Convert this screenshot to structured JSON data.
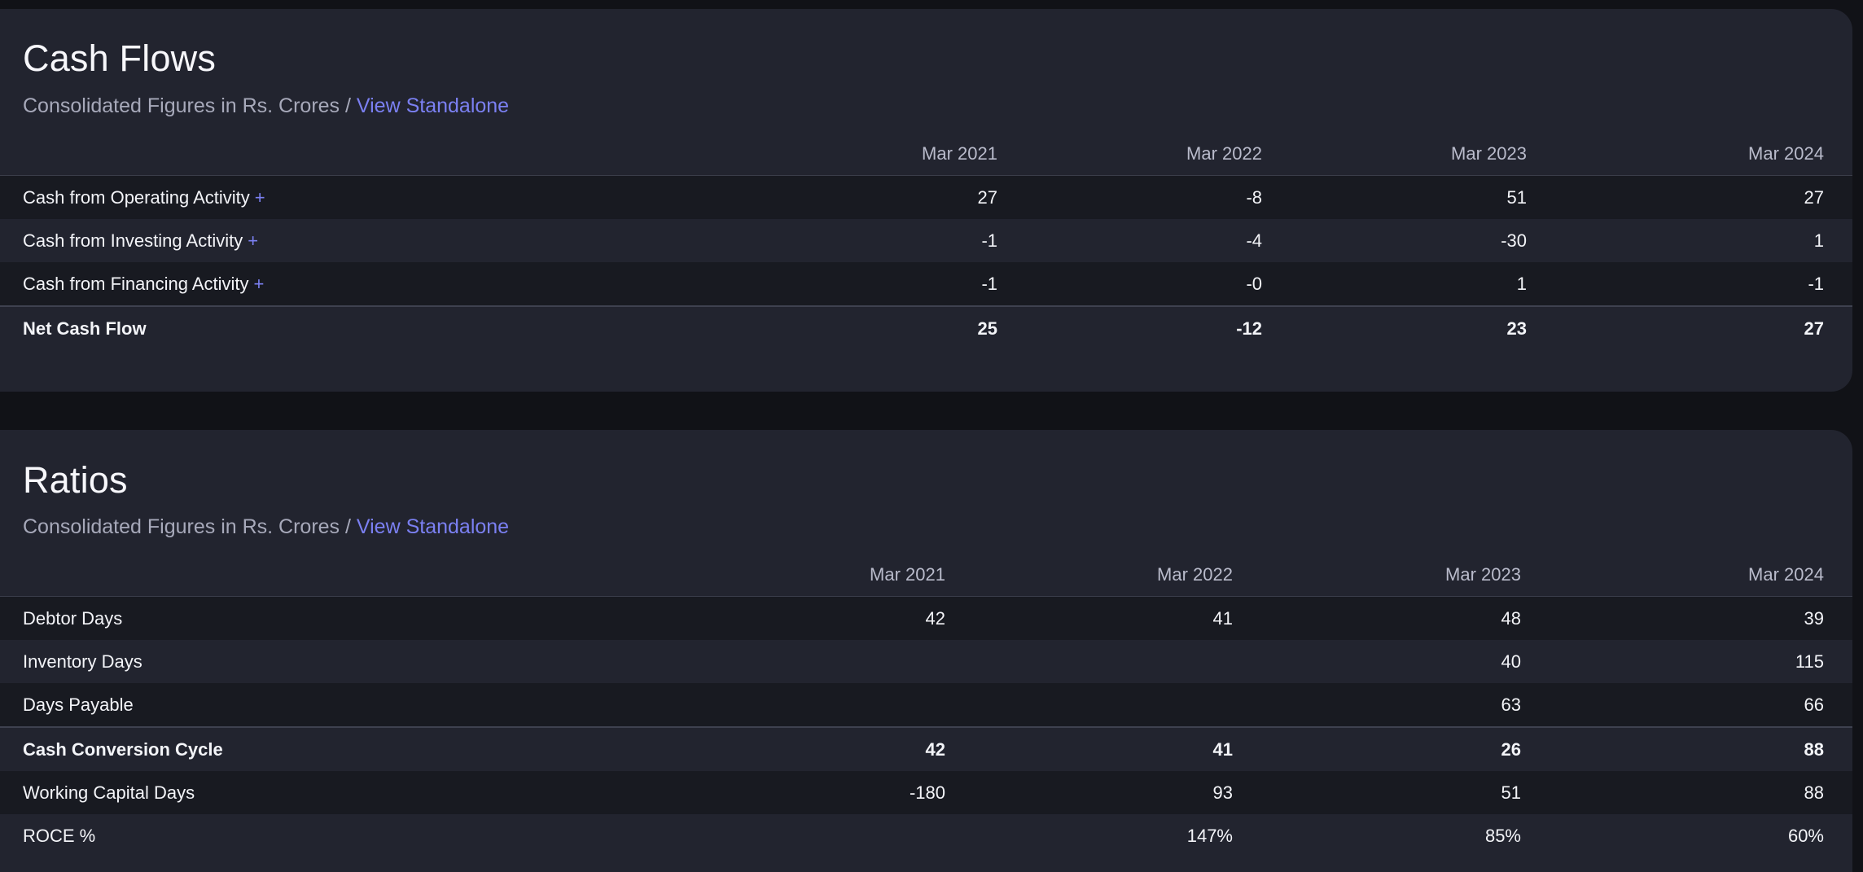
{
  "cash_flows": {
    "title": "Cash Flows",
    "subtitle": "Consolidated Figures in Rs. Crores /",
    "link": "View Standalone",
    "columns": [
      "Mar 2021",
      "Mar 2022",
      "Mar 2023",
      "Mar 2024"
    ],
    "rows": [
      {
        "label": "Cash from Operating Activity",
        "plus": "+",
        "values": [
          "27",
          "-8",
          "51",
          "27"
        ]
      },
      {
        "label": "Cash from Investing Activity",
        "plus": "+",
        "values": [
          "-1",
          "-4",
          "-30",
          "1"
        ]
      },
      {
        "label": "Cash from Financing Activity",
        "plus": "+",
        "values": [
          "-1",
          "-0",
          "1",
          "-1"
        ]
      },
      {
        "label": "Net Cash Flow",
        "values": [
          "25",
          "-12",
          "23",
          "27"
        ]
      }
    ]
  },
  "ratios": {
    "title": "Ratios",
    "subtitle": "Consolidated Figures in Rs. Crores /",
    "link": "View Standalone",
    "columns": [
      "Mar 2021",
      "Mar 2022",
      "Mar 2023",
      "Mar 2024"
    ],
    "rows": [
      {
        "label": "Debtor Days",
        "values": [
          "42",
          "41",
          "48",
          "39"
        ]
      },
      {
        "label": "Inventory Days",
        "values": [
          "",
          "",
          "40",
          "115"
        ]
      },
      {
        "label": "Days Payable",
        "values": [
          "",
          "",
          "63",
          "66"
        ]
      },
      {
        "label": "Cash Conversion Cycle",
        "values": [
          "42",
          "41",
          "26",
          "88"
        ]
      },
      {
        "label": "Working Capital Days",
        "values": [
          "-180",
          "93",
          "51",
          "88"
        ]
      },
      {
        "label": "ROCE %",
        "values": [
          "",
          "147%",
          "85%",
          "60%"
        ]
      }
    ]
  },
  "colors": {
    "background": "#111217",
    "card": "#22242f",
    "row_alt": "#181a21",
    "link": "#7b80f2"
  }
}
